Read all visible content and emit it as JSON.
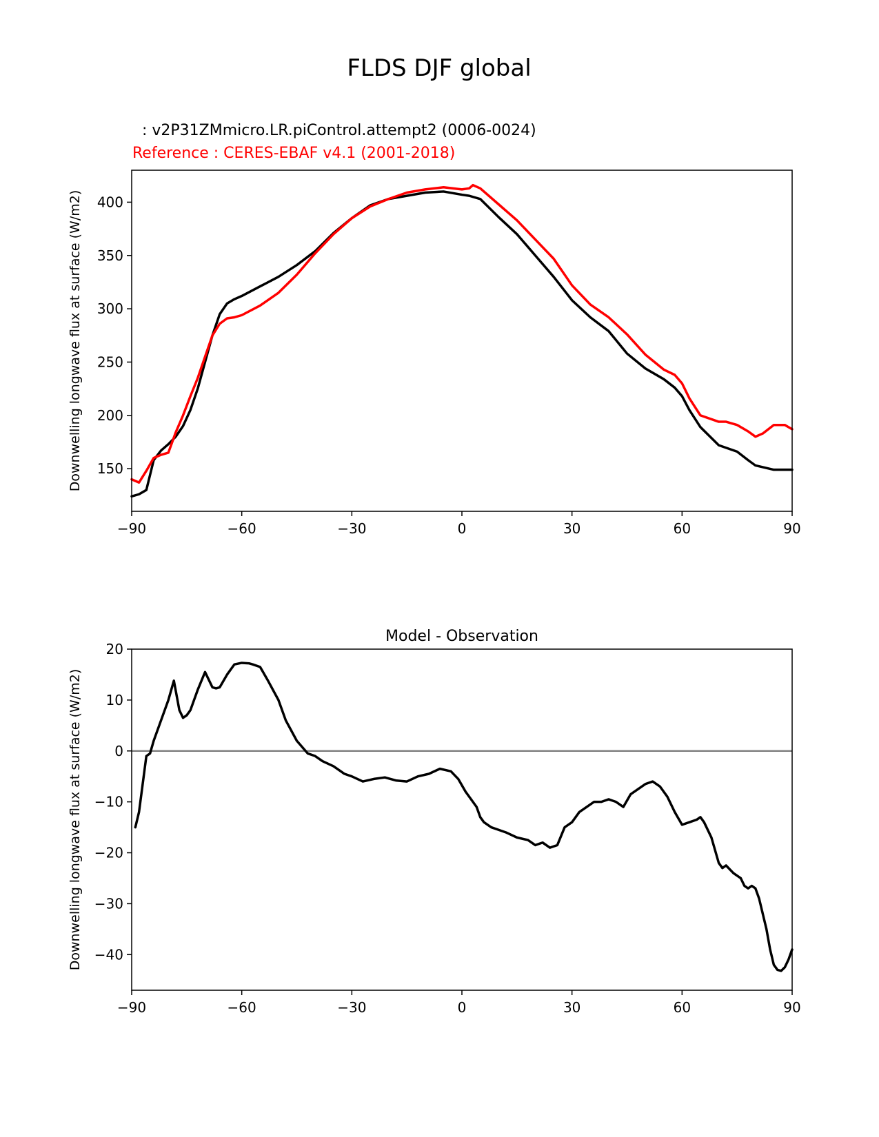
{
  "suptitle": "FLDS DJF global",
  "test_label": "  : v2P31ZMmicro.LR.piControl.attempt2 (0006-0024)",
  "ref_label": "Reference : CERES-EBAF v4.1 (2001-2018)",
  "colors": {
    "test": "#000000",
    "ref": "#ff0000",
    "zero_line": "#808080"
  },
  "chart_data": [
    {
      "type": "line",
      "title": "",
      "xlabel": "",
      "ylabel": "Downwelling longwave flux at surface (W/m2)",
      "xlim": [
        -90,
        90
      ],
      "ylim": [
        110,
        430
      ],
      "xticks": [
        -90,
        -60,
        -30,
        0,
        30,
        60,
        90
      ],
      "xtick_labels": [
        "−90",
        "−60",
        "−30",
        "0",
        "30",
        "60",
        "90"
      ],
      "yticks": [
        150,
        200,
        250,
        300,
        350,
        400
      ],
      "ytick_labels": [
        "150",
        "200",
        "250",
        "300",
        "350",
        "400"
      ],
      "series": [
        {
          "name": "test",
          "color": "#000000",
          "x": [
            -90,
            -88,
            -86,
            -84,
            -82,
            -80,
            -78,
            -76,
            -74,
            -72,
            -70,
            -68,
            -66,
            -64,
            -62,
            -60,
            -55,
            -50,
            -45,
            -40,
            -35,
            -30,
            -25,
            -20,
            -15,
            -10,
            -5,
            0,
            2,
            5,
            10,
            15,
            20,
            25,
            30,
            35,
            40,
            45,
            50,
            55,
            58,
            60,
            62,
            65,
            70,
            75,
            78,
            80,
            85,
            90
          ],
          "y": [
            124,
            126,
            130,
            158,
            167,
            173,
            180,
            190,
            205,
            225,
            250,
            275,
            295,
            305,
            309,
            312,
            321,
            330,
            341,
            354,
            371,
            385,
            397,
            403,
            406,
            409,
            410,
            407,
            406,
            403,
            386,
            370,
            350,
            330,
            308,
            292,
            279,
            258,
            244,
            234,
            226,
            218,
            205,
            189,
            172,
            166,
            158,
            153,
            149,
            149
          ]
        },
        {
          "name": "ref",
          "color": "#ff0000",
          "x": [
            -90,
            -88,
            -86,
            -84,
            -82,
            -80,
            -78,
            -76,
            -74,
            -72,
            -70,
            -68,
            -66,
            -64,
            -62,
            -60,
            -55,
            -50,
            -45,
            -40,
            -35,
            -30,
            -25,
            -20,
            -15,
            -10,
            -5,
            0,
            2,
            3,
            5,
            10,
            15,
            20,
            25,
            30,
            35,
            40,
            45,
            50,
            55,
            58,
            60,
            62,
            65,
            70,
            72,
            75,
            78,
            80,
            82,
            85,
            88,
            90
          ],
          "y": [
            140,
            137,
            148,
            160,
            163,
            165,
            184,
            200,
            218,
            235,
            255,
            275,
            286,
            291,
            292,
            294,
            303,
            315,
            332,
            352,
            370,
            385,
            396,
            403,
            409,
            412,
            414,
            412,
            413,
            416,
            413,
            398,
            383,
            365,
            347,
            322,
            304,
            292,
            276,
            257,
            243,
            238,
            230,
            216,
            200,
            194,
            194,
            191,
            185,
            180,
            183,
            191,
            191,
            187
          ]
        }
      ]
    },
    {
      "type": "line",
      "title": "Model - Observation",
      "xlabel": "",
      "ylabel": "Downwelling longwave flux at surface (W/m2)",
      "xlim": [
        -90,
        90
      ],
      "ylim": [
        -47,
        20
      ],
      "xticks": [
        -90,
        -60,
        -30,
        0,
        30,
        60,
        90
      ],
      "xtick_labels": [
        "−90",
        "−60",
        "−30",
        "0",
        "30",
        "60",
        "90"
      ],
      "yticks": [
        -40,
        -30,
        -20,
        -10,
        0,
        10,
        20
      ],
      "ytick_labels": [
        "−40",
        "−30",
        "−20",
        "−10",
        "0",
        "10",
        "20"
      ],
      "zero_line": 0,
      "series": [
        {
          "name": "difference",
          "color": "#000000",
          "x": [
            -89,
            -88,
            -86,
            -85,
            -84,
            -82,
            -80,
            -78.5,
            -77,
            -76,
            -75,
            -74,
            -72,
            -70,
            -68,
            -67,
            -66,
            -64,
            -62,
            -60,
            -58,
            -57,
            -55,
            -53,
            -50,
            -48,
            -45,
            -42,
            -40,
            -38,
            -35,
            -32,
            -30,
            -27,
            -24,
            -21,
            -18,
            -15,
            -12,
            -9,
            -6,
            -3,
            -1,
            1,
            3,
            4,
            5,
            6,
            8,
            10,
            12,
            15,
            18,
            20,
            22,
            24,
            26,
            28,
            30,
            32,
            34,
            36,
            38,
            40,
            42,
            44,
            46,
            48,
            50,
            52,
            54,
            56,
            58,
            60,
            62,
            64,
            65,
            66,
            68,
            70,
            71,
            72,
            74,
            76,
            77,
            78,
            79,
            80,
            81,
            82,
            83,
            84,
            85,
            86,
            87,
            88,
            89,
            90
          ],
          "y": [
            -15,
            -12,
            -1,
            -0.5,
            2,
            6,
            10,
            13.8,
            8,
            6.5,
            7,
            8,
            12,
            15.5,
            12.5,
            12.3,
            12.5,
            15,
            17,
            17.3,
            17.2,
            17,
            16.5,
            14,
            10,
            6,
            2,
            -0.5,
            -1,
            -2,
            -3,
            -4.5,
            -5,
            -6,
            -5.5,
            -5.2,
            -5.8,
            -6,
            -5,
            -4.5,
            -3.5,
            -4,
            -5.5,
            -8,
            -10,
            -11,
            -13,
            -14,
            -15,
            -15.5,
            -16,
            -17,
            -17.5,
            -18.5,
            -18,
            -19,
            -18.5,
            -15,
            -14,
            -12,
            -11,
            -10,
            -10,
            -9.5,
            -10,
            -11,
            -8.5,
            -7.5,
            -6.5,
            -6,
            -7,
            -9,
            -12,
            -14.5,
            -14,
            -13.5,
            -13,
            -14,
            -17,
            -22,
            -23,
            -22.5,
            -24,
            -25,
            -26.5,
            -27,
            -26.5,
            -27,
            -29,
            -32,
            -35,
            -39,
            -42,
            -43,
            -43.2,
            -42.5,
            -41,
            -39
          ]
        }
      ]
    }
  ]
}
